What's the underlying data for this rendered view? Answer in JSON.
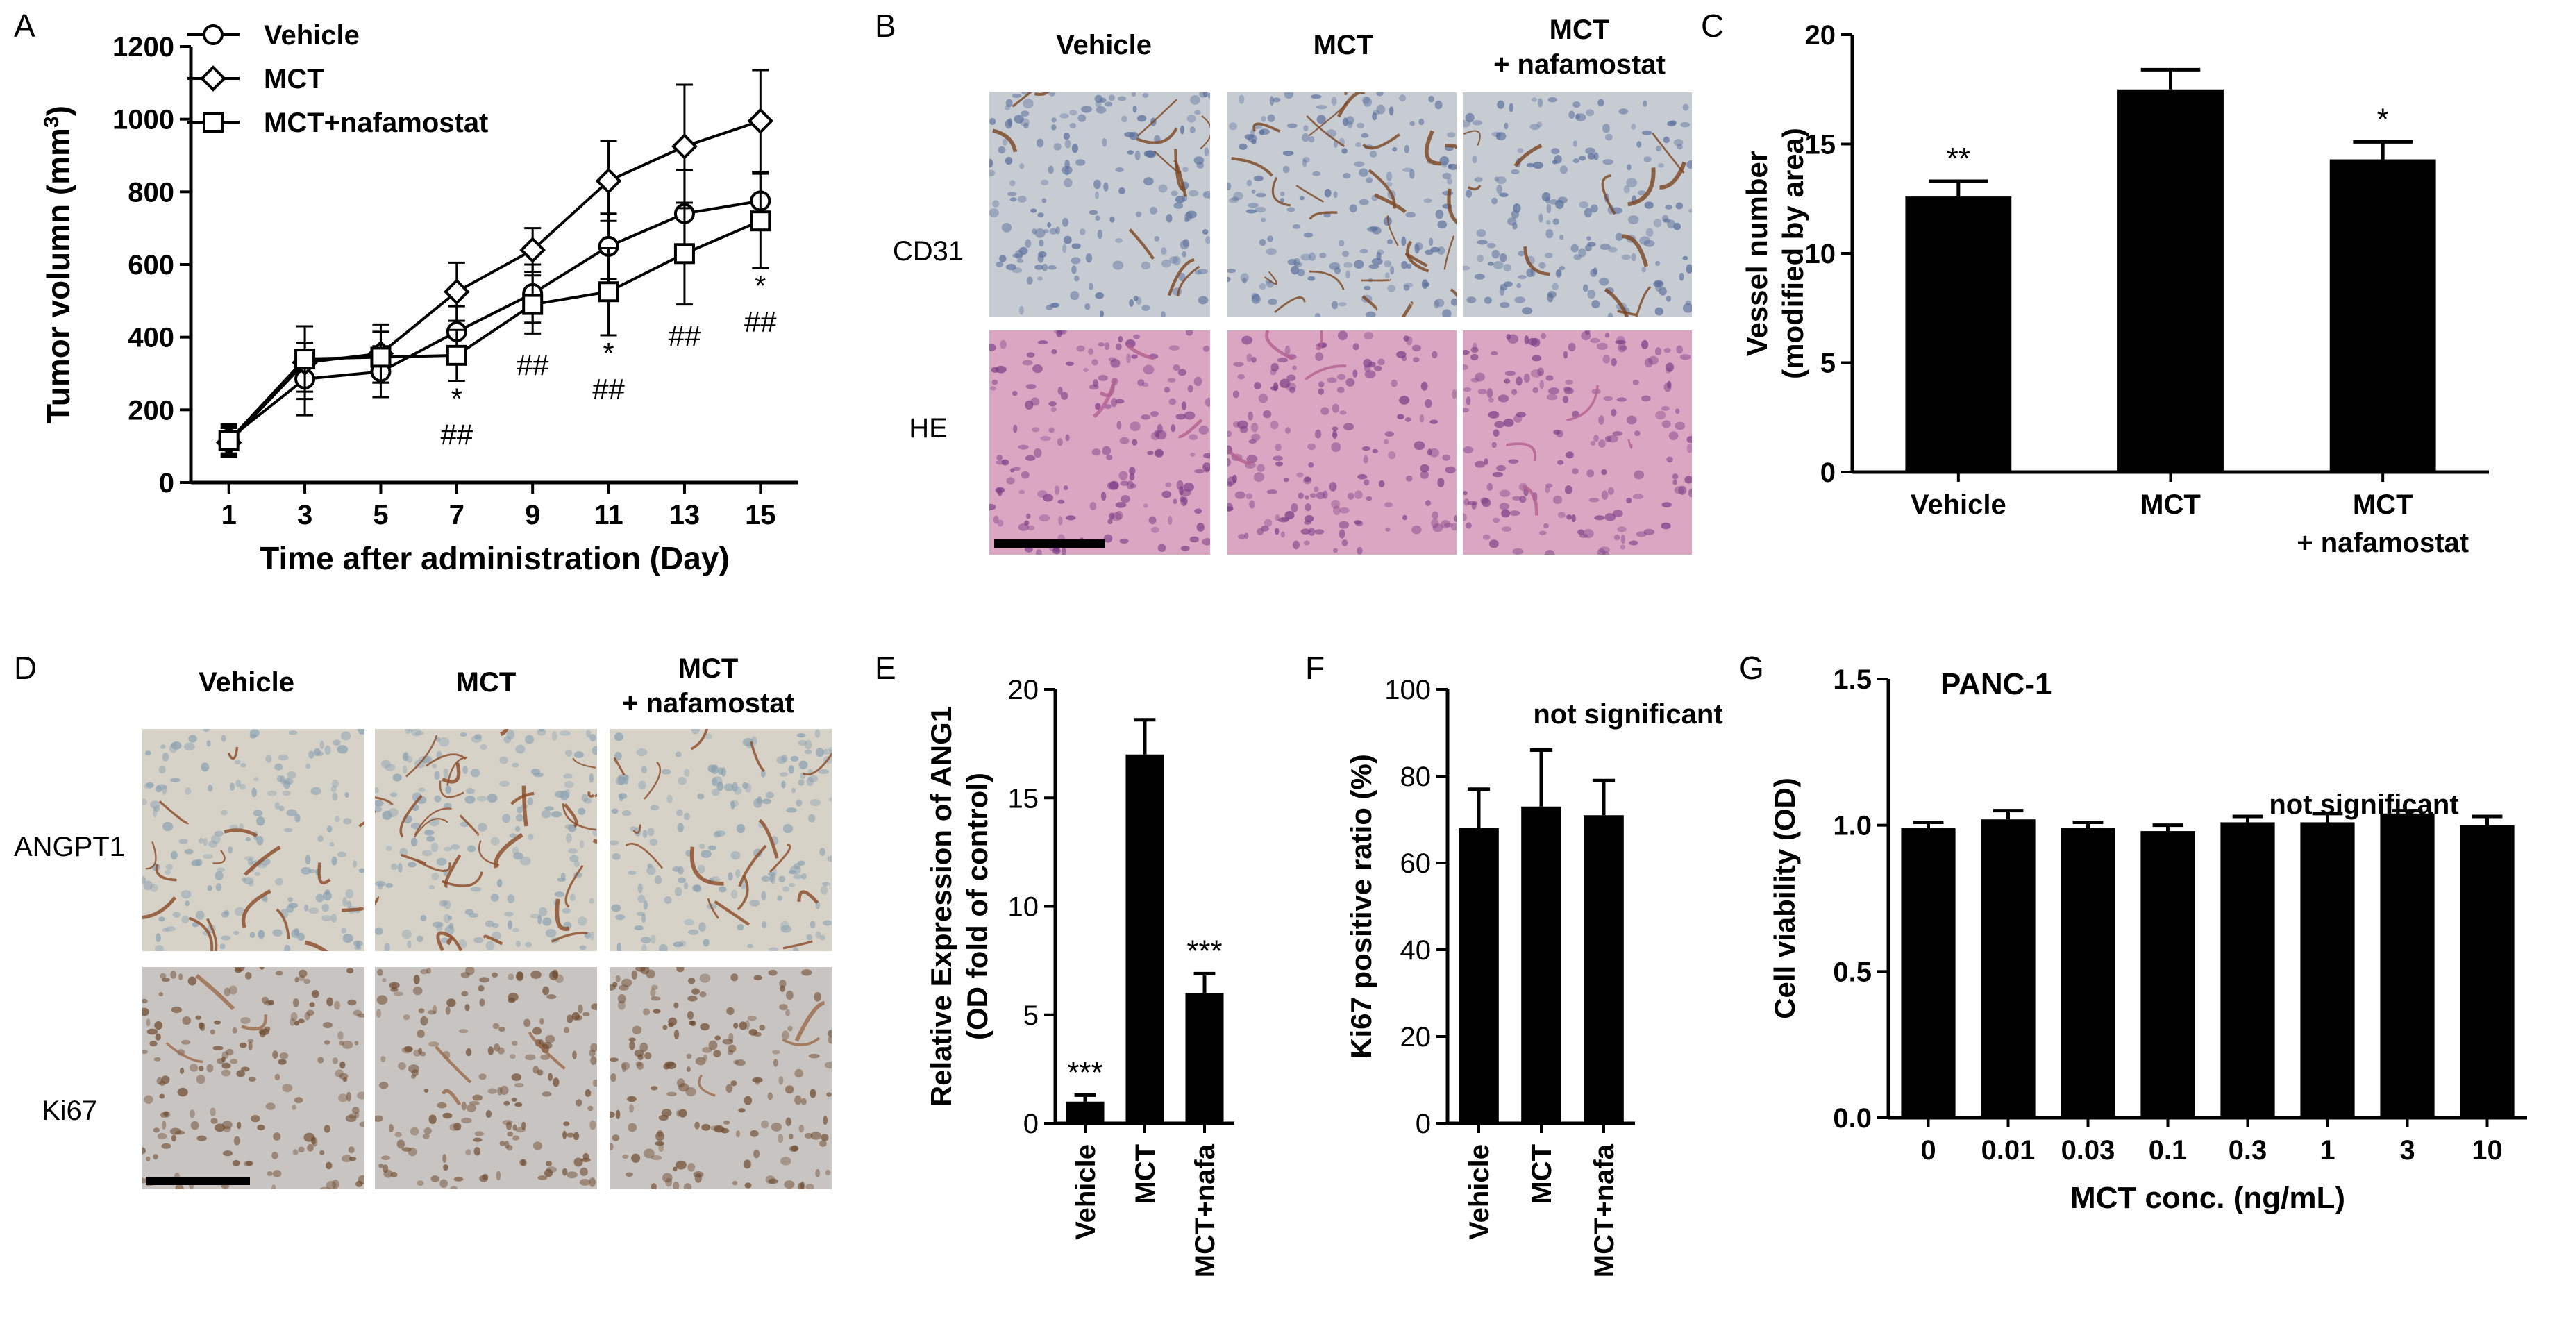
{
  "panel_letters": [
    "A",
    "B",
    "C",
    "D",
    "E",
    "F",
    "G"
  ],
  "colors": {
    "ihc_cd31_bg": "#c7cbd2",
    "ihc_he_bg": "#dba6c1",
    "ihc_angpt1_bg": "#d6d2c8",
    "ihc_ki67_bg": "#c8c4c2"
  },
  "panel_b": {
    "columns": [
      "Vehicle",
      "MCT",
      "MCT",
      "+ nafamostat"
    ],
    "rows": [
      "CD31",
      "HE"
    ]
  },
  "panel_d": {
    "columns": [
      "Vehicle",
      "MCT",
      "MCT",
      "+ nafamostat"
    ],
    "rows": [
      "ANGPT1",
      "Ki67"
    ]
  },
  "chart_data": [
    {
      "panel": "A",
      "type": "line",
      "xlabel": "Time after administration (Day)",
      "ylabel_main": "Tumor volumn (mm",
      "ylabel_sup": "3",
      "ylabel_end": ")",
      "x": [
        1,
        3,
        5,
        7,
        9,
        11,
        13,
        15
      ],
      "ylim": [
        0,
        1200
      ],
      "yticks": [
        0,
        200,
        400,
        600,
        800,
        1000,
        1200
      ],
      "series": [
        {
          "name": "Vehicle",
          "marker": "circle",
          "values": [
            120,
            285,
            305,
            415,
            520,
            650,
            740,
            775
          ],
          "errors": [
            40,
            100,
            70,
            70,
            80,
            90,
            120,
            80
          ]
        },
        {
          "name": "MCT",
          "marker": "diamond",
          "values": [
            110,
            330,
            355,
            525,
            640,
            830,
            925,
            995
          ],
          "errors": [
            40,
            100,
            80,
            80,
            60,
            110,
            170,
            140
          ]
        },
        {
          "name": "MCT+nafamostat",
          "marker": "square",
          "values": [
            115,
            340,
            345,
            350,
            490,
            525,
            630,
            720
          ],
          "errors": [
            40,
            90,
            70,
            70,
            80,
            120,
            140,
            130
          ]
        }
      ],
      "annotations": [
        {
          "x": 7,
          "lines": [
            "*",
            "##"
          ]
        },
        {
          "x": 9,
          "lines": [
            "##"
          ]
        },
        {
          "x": 11,
          "lines": [
            "*",
            "##"
          ]
        },
        {
          "x": 13,
          "lines": [
            "##"
          ]
        },
        {
          "x": 15,
          "lines": [
            "*",
            "##"
          ]
        }
      ]
    },
    {
      "panel": "C",
      "type": "bar",
      "ylabel_lines": [
        "Vessel number",
        "(modified by area)"
      ],
      "categories": [
        [
          "Vehicle"
        ],
        [
          "MCT"
        ],
        [
          "MCT",
          "+ nafamostat"
        ]
      ],
      "values": [
        12.6,
        17.5,
        14.3
      ],
      "errors": [
        0.7,
        0.9,
        0.8
      ],
      "significance": [
        "**",
        "",
        "*"
      ],
      "ylim": [
        0,
        20
      ],
      "yticks": [
        0,
        5,
        10,
        15,
        20
      ]
    },
    {
      "panel": "E",
      "type": "bar",
      "ylabel_lines": [
        "Relative Expression of ANG1",
        "(OD fold of control)"
      ],
      "categories": [
        "Vehicle",
        "MCT",
        "MCT+nafa"
      ],
      "values": [
        1.0,
        17.0,
        6.0
      ],
      "errors": [
        0.3,
        1.6,
        0.9
      ],
      "significance": [
        "***",
        "",
        "***"
      ],
      "ylim": [
        0,
        20
      ],
      "yticks": [
        0,
        5,
        10,
        15,
        20
      ]
    },
    {
      "panel": "F",
      "type": "bar",
      "ylabel_lines": [
        "Ki67 positive ratio (%)"
      ],
      "categories": [
        "Vehicle",
        "MCT",
        "MCT+nafa"
      ],
      "values": [
        68,
        73,
        71
      ],
      "errors": [
        9,
        13,
        8
      ],
      "annotation": "not significant",
      "ylim": [
        0,
        100
      ],
      "yticks": [
        0,
        20,
        40,
        60,
        80,
        100
      ]
    },
    {
      "panel": "G",
      "type": "bar",
      "title": "PANC-1",
      "xlabel": "MCT conc. (ng/mL)",
      "ylabel_lines": [
        "Cell viability (OD)"
      ],
      "categories": [
        "0",
        "0.01",
        "0.03",
        "0.1",
        "0.3",
        "1",
        "3",
        "10"
      ],
      "values": [
        0.99,
        1.02,
        0.99,
        0.98,
        1.01,
        1.01,
        1.04,
        1.0
      ],
      "errors": [
        0.02,
        0.03,
        0.02,
        0.02,
        0.02,
        0.03,
        0.01,
        0.03
      ],
      "annotation": "not significant",
      "ylim": [
        0,
        1.5
      ],
      "yticks": [
        "0.0",
        "0.5",
        "1.0",
        "1.5"
      ]
    }
  ]
}
